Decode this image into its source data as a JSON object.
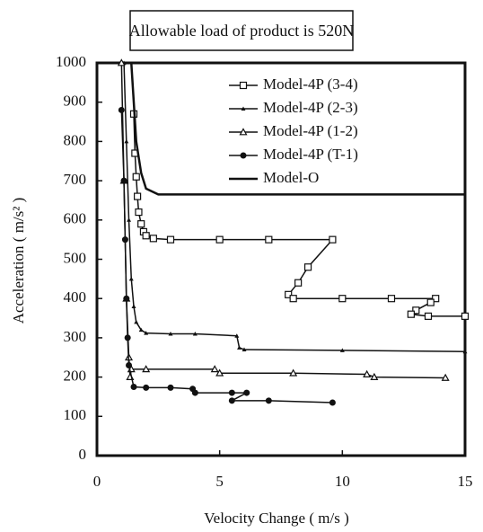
{
  "chart_data": {
    "type": "line",
    "title": "Allowable load of product is 520N",
    "x_label": "Velocity Change ( m/s )",
    "y_label": "Acceleration ( m/s² )",
    "xlim": [
      0,
      15
    ],
    "xticks": [
      0,
      5,
      10,
      15
    ],
    "ylim": [
      0,
      1000
    ],
    "yticks": [
      0,
      100,
      200,
      300,
      400,
      500,
      600,
      700,
      800,
      900,
      1000
    ],
    "grid": false,
    "legend": "upper right",
    "series": [
      {
        "name": "Model-4P (3-4)",
        "color": "#111111",
        "marker": "square",
        "x": [
          1.5,
          1.55,
          1.6,
          1.65,
          1.7,
          1.8,
          1.9,
          2.0,
          2.3,
          3,
          5,
          7,
          9.6,
          8.6,
          8.2,
          7.8,
          8,
          10,
          12,
          13.8,
          13.6,
          13.0,
          12.8,
          13.5,
          15
        ],
        "values": [
          870,
          770,
          710,
          660,
          620,
          590,
          570,
          560,
          553,
          550,
          550,
          550,
          550,
          480,
          440,
          410,
          400,
          400,
          400,
          400,
          390,
          370,
          360,
          355,
          355
        ]
      },
      {
        "name": "Model-4P (2-3)",
        "color": "#111111",
        "marker": "dot",
        "x": [
          1.1,
          1.2,
          1.3,
          1.4,
          1.5,
          1.6,
          1.8,
          2,
          3,
          4,
          5.7,
          5.8,
          6,
          10,
          15
        ],
        "values": [
          1000,
          800,
          600,
          450,
          380,
          340,
          320,
          312,
          310,
          310,
          305,
          275,
          270,
          268,
          265
        ]
      },
      {
        "name": "Model-4P (1-2)",
        "color": "#111111",
        "marker": "triangle",
        "x": [
          1.0,
          1.1,
          1.2,
          1.3,
          1.35,
          1.4,
          2,
          4.8,
          5,
          8,
          11,
          11.3,
          14.2
        ],
        "values": [
          1000,
          700,
          400,
          250,
          200,
          220,
          220,
          220,
          210,
          210,
          207,
          200,
          198
        ]
      },
      {
        "name": "Model-4P (T-1)",
        "color": "#111111",
        "marker": "circle",
        "x": [
          1.0,
          1.1,
          1.15,
          1.2,
          1.25,
          1.3,
          1.5,
          2,
          3,
          3.9,
          4,
          5.5,
          6.1,
          5.5,
          7,
          9.6
        ],
        "values": [
          880,
          700,
          550,
          400,
          300,
          230,
          175,
          173,
          173,
          170,
          160,
          160,
          160,
          140,
          140,
          135
        ]
      },
      {
        "name": "Model-O",
        "color": "#111111",
        "marker": "none",
        "x": [
          1.4,
          1.5,
          1.6,
          1.8,
          2.0,
          2.5,
          5,
          10,
          15
        ],
        "values": [
          1000,
          900,
          800,
          720,
          680,
          665,
          665,
          665,
          665
        ]
      }
    ]
  }
}
